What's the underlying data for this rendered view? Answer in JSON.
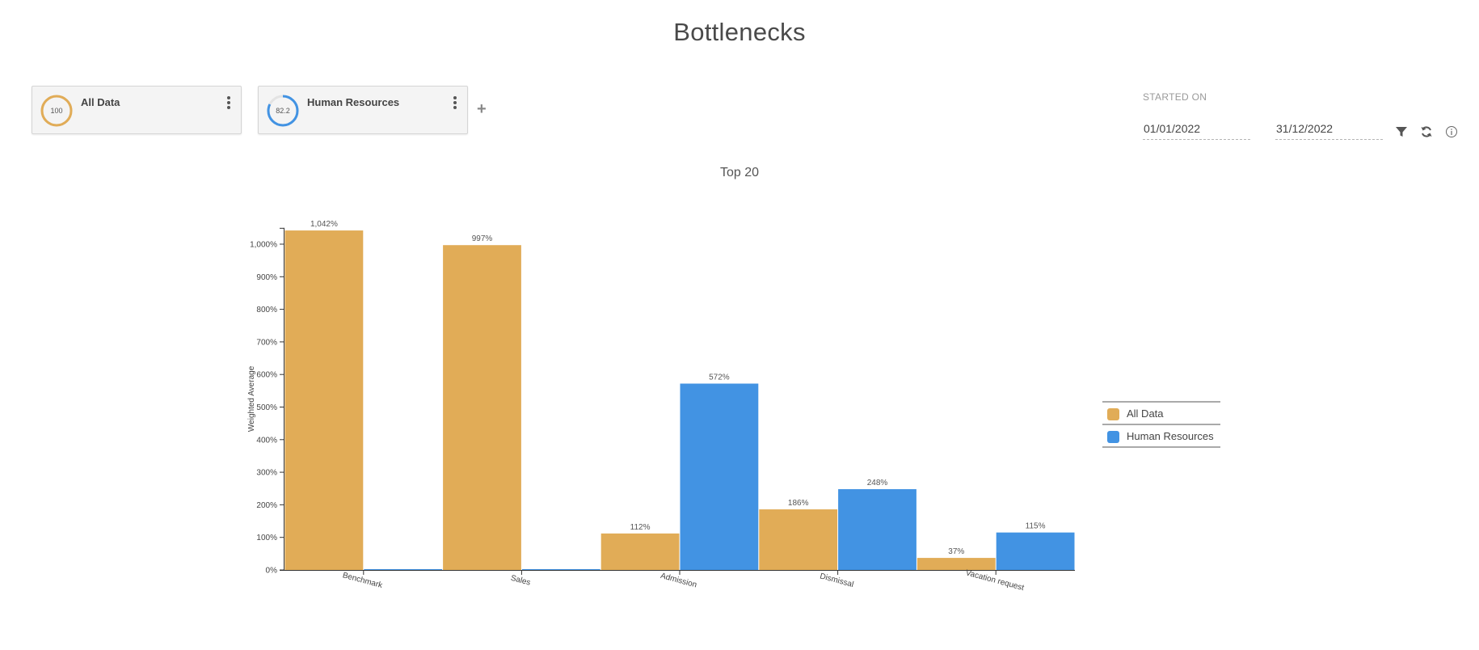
{
  "page": {
    "title": "Bottlenecks"
  },
  "filters": [
    {
      "label": "All Data",
      "score": "100",
      "fraction": 1.0,
      "color": "#e1ac57"
    },
    {
      "label": "Human Resources",
      "score": "82.2",
      "fraction": 0.822,
      "color": "#4293e3"
    }
  ],
  "date_range": {
    "label": "STARTED ON",
    "start": "01/01/2022",
    "end": "31/12/2022"
  },
  "toolbar": {
    "icons": [
      "filter-icon",
      "refresh-icon",
      "info-icon"
    ]
  },
  "chart_data": {
    "type": "bar",
    "title": "Top 20",
    "ylabel": "Weighted Average",
    "xlabel": "",
    "ylim": [
      0,
      1050
    ],
    "yticks": [
      {
        "value": 0,
        "label": "0%"
      },
      {
        "value": 100,
        "label": "100%"
      },
      {
        "value": 200,
        "label": "200%"
      },
      {
        "value": 300,
        "label": "300%"
      },
      {
        "value": 400,
        "label": "400%"
      },
      {
        "value": 500,
        "label": "500%"
      },
      {
        "value": 600,
        "label": "600%"
      },
      {
        "value": 700,
        "label": "700%"
      },
      {
        "value": 800,
        "label": "800%"
      },
      {
        "value": 900,
        "label": "900%"
      },
      {
        "value": 1000,
        "label": "1,000%"
      }
    ],
    "categories": [
      "Benchmark",
      "Sales",
      "Admission",
      "Dismissal",
      "Vacation request"
    ],
    "series": [
      {
        "name": "All Data",
        "color": "#e1ac57",
        "values": [
          1042,
          997,
          112,
          186,
          37
        ],
        "labels": [
          "1,042%",
          "997%",
          "112%",
          "186%",
          "37%"
        ]
      },
      {
        "name": "Human Resources",
        "color": "#4293e3",
        "values": [
          0,
          0,
          572,
          248,
          115
        ],
        "labels": [
          "",
          "",
          "572%",
          "248%",
          "115%"
        ]
      }
    ],
    "legend_position": "right",
    "grid": false
  }
}
